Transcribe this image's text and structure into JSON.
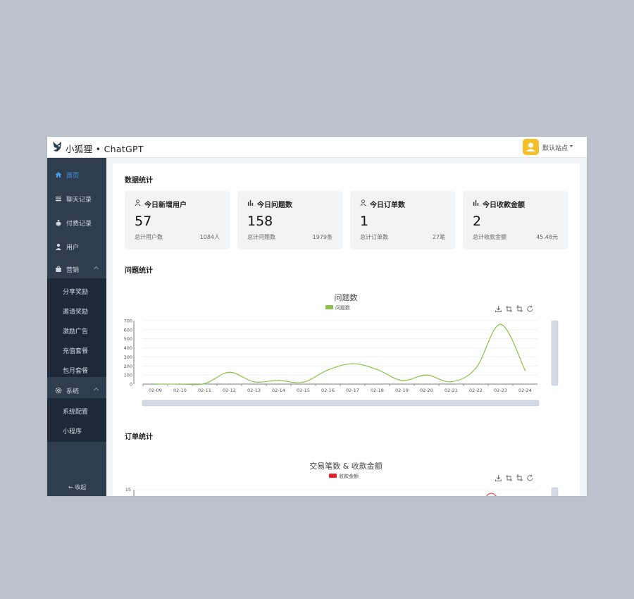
{
  "header": {
    "brand": "小狐狸 • ChatGPT",
    "site_name": "默认站点"
  },
  "sidebar": {
    "items": [
      {
        "label": "首页",
        "icon": "home-icon",
        "active": true
      },
      {
        "label": "聊天记录",
        "icon": "list-icon"
      },
      {
        "label": "付费记录",
        "icon": "money-bag-icon"
      },
      {
        "label": "用户",
        "icon": "user-icon"
      },
      {
        "label": "营销",
        "icon": "shop-icon",
        "expanded": true
      }
    ],
    "marketing_sub": [
      "分享奖励",
      "邀请奖励",
      "激励广告",
      "充值套餐",
      "包月套餐"
    ],
    "system": {
      "label": "系统",
      "icon": "gear-icon",
      "expanded": true
    },
    "system_sub": [
      "系统配置",
      "小程序"
    ],
    "collapse_label": "← 收起"
  },
  "main": {
    "data_title": "数据统计",
    "question_title": "问题统计",
    "order_title": "订单统计"
  },
  "cards": [
    {
      "title": "今日新增用户",
      "icon": "user-outline-icon",
      "value": "57",
      "foot_label": "总计用户数",
      "foot_value": "1084人"
    },
    {
      "title": "今日问题数",
      "icon": "bar-chart-icon",
      "value": "158",
      "foot_label": "总计问题数",
      "foot_value": "1979条"
    },
    {
      "title": "今日订单数",
      "icon": "user-outline-icon",
      "value": "1",
      "foot_label": "总计订单数",
      "foot_value": "27笔"
    },
    {
      "title": "今日收款金额",
      "icon": "bar-chart-icon",
      "value": "2",
      "foot_label": "总计收款金额",
      "foot_value": "45.48元"
    }
  ],
  "colors": {
    "accent": "#3d9cf0",
    "sidebar_bg": "#2f3d4f",
    "submenu_bg": "#1d2936",
    "series_green": "#8bc34a",
    "series_red": "#e0242b",
    "avatar": "#f5c12a"
  },
  "chart_data": [
    {
      "type": "line",
      "title": "问题数",
      "x": [
        "02-09",
        "02-10",
        "02-11",
        "02-12",
        "02-13",
        "02-14",
        "02-15",
        "02-16",
        "02-17",
        "02-18",
        "02-19",
        "02-20",
        "02-21",
        "02-22",
        "02-23",
        "02-24"
      ],
      "series": [
        {
          "name": "问题数",
          "color": "#8bc34a",
          "values": [
            0,
            0,
            5,
            130,
            25,
            40,
            20,
            155,
            225,
            160,
            40,
            100,
            25,
            175,
            660,
            150
          ]
        }
      ],
      "yticks": [
        0,
        100,
        200,
        300,
        400,
        500,
        600,
        700
      ],
      "ylim": [
        0,
        700
      ],
      "legend": "top-center",
      "grid": true,
      "smooth": true,
      "toolbox": [
        "download-icon",
        "zoom-icon",
        "zoom-reset-icon",
        "refresh-icon"
      ]
    },
    {
      "type": "line",
      "title": "交易笔数 & 收款金额",
      "series": [
        {
          "name": "收款金额",
          "color": "#e0242b"
        }
      ],
      "yticks": [
        15
      ],
      "legend": "top-center",
      "toolbox": [
        "download-icon",
        "zoom-icon",
        "zoom-reset-icon",
        "refresh-icon"
      ]
    }
  ]
}
